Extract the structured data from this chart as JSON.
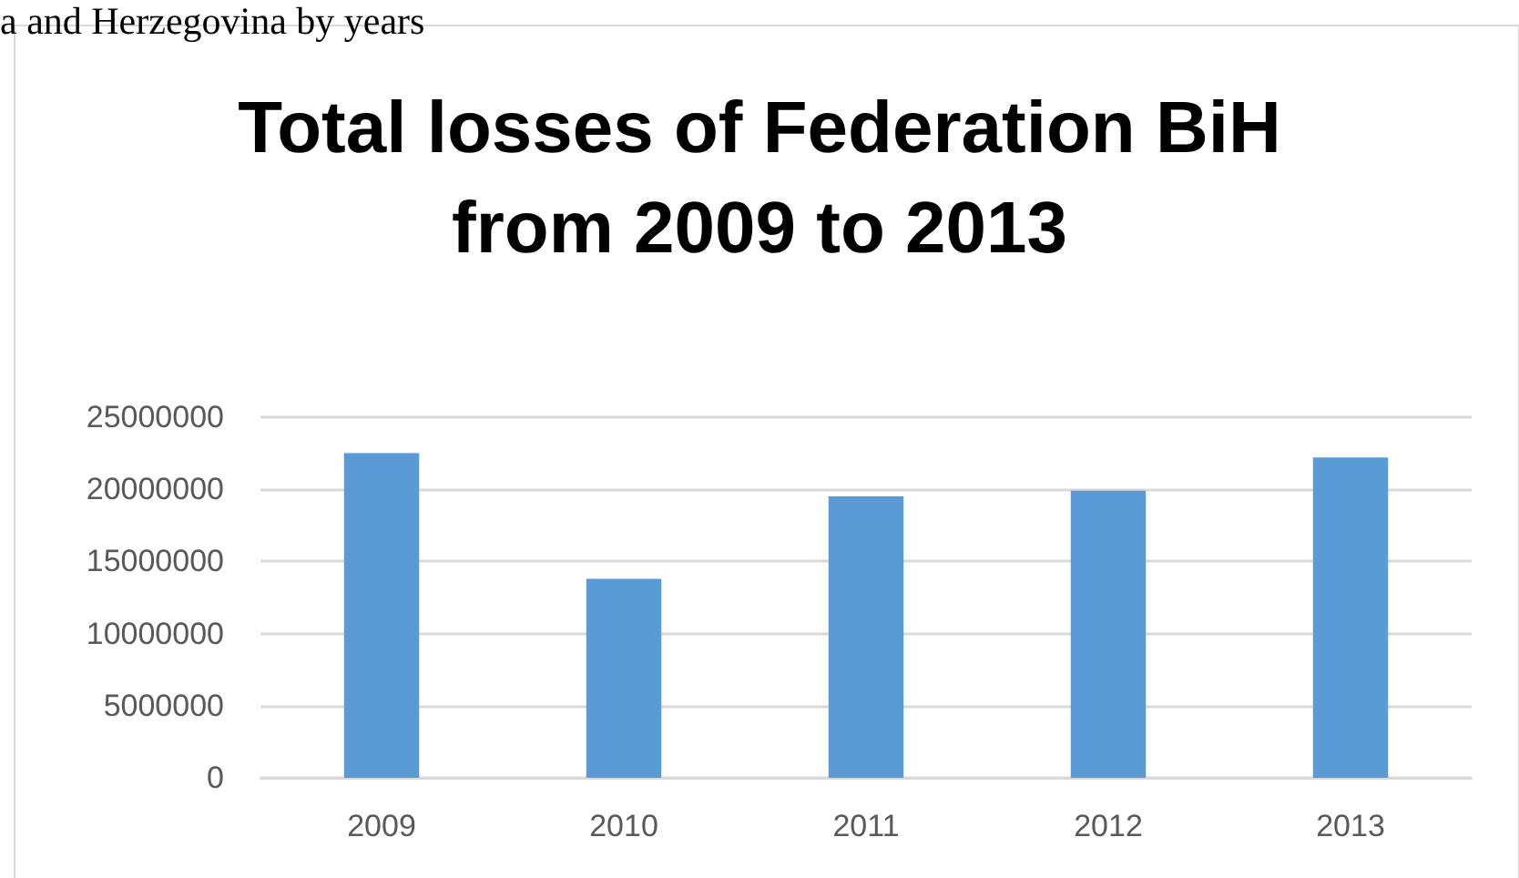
{
  "chart_data": {
    "type": "bar",
    "title": "Total losses of Federation BiH\nfrom 2009 to 2013",
    "annotations": [
      "a and Herzegovina by years"
    ],
    "categories": [
      "2009",
      "2010",
      "2011",
      "2012",
      "2013"
    ],
    "values": [
      22500000,
      13800000,
      19500000,
      19900000,
      22200000
    ],
    "color": "#5b9bd5",
    "ylim": [
      0,
      25000000
    ],
    "yticks": [
      0,
      5000000,
      10000000,
      15000000,
      20000000,
      25000000
    ],
    "grid": "y"
  }
}
